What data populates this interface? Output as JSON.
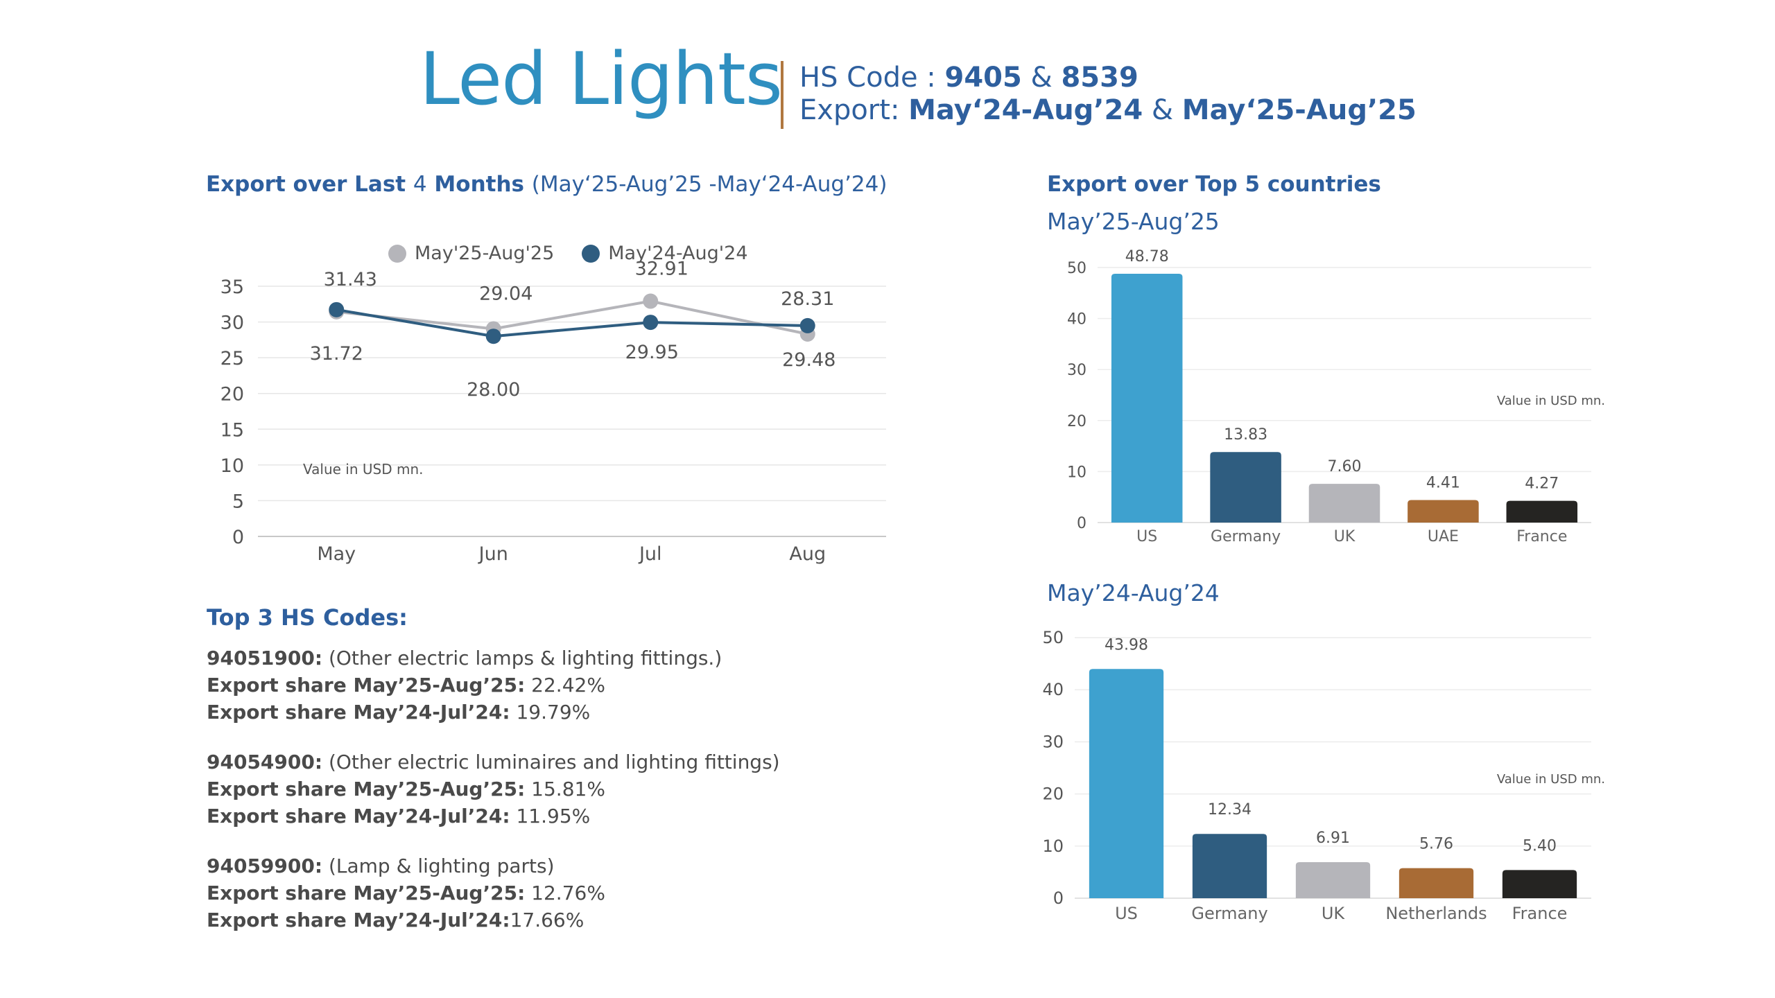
{
  "header": {
    "title": "Led Lights",
    "hs_label": "HS Code : ",
    "hs_code_1": "9405",
    "hs_amp": " & ",
    "hs_code_2": "8539",
    "export_label": "Export: ",
    "period_1": "May‘24-Aug’24",
    "period_amp": " & ",
    "period_2": "May‘25-Aug’25"
  },
  "line_section": {
    "title_bold_1": "Export over Last ",
    "title_num": "4",
    "title_bold_2": " Months ",
    "title_light": "(May‘25-Aug’25 -May‘24-Aug’24)"
  },
  "countries_section": {
    "title": "Export over Top 5 countries",
    "subtitle_1": "May’25-Aug’25",
    "subtitle_2": "May’24-Aug’24"
  },
  "hs_codes": {
    "heading": "Top 3 HS Codes:",
    "items": [
      {
        "code": "94051900:",
        "desc": " (Other electric lamps & lighting fittings.)",
        "share1_label": "Export share May’25-Aug’25:",
        "share1_value": " 22.42%",
        "share2_label": "Export share May’24-Jul’24:",
        "share2_value": " 19.79%"
      },
      {
        "code": "94054900:",
        "desc": " (Other electric luminaires and lighting fittings)",
        "share1_label": "Export share May’25-Aug’25:",
        "share1_value": " 15.81%",
        "share2_label": "Export share May’24-Jul’24:",
        "share2_value": " 11.95%"
      },
      {
        "code": "94059900:",
        "desc": " (Lamp & lighting parts)",
        "share1_label": "Export share May’25-Aug’25:",
        "share1_value": " 12.76%",
        "share2_label": "Export share May’24-Jul’24:",
        "share2_value": "17.66%"
      }
    ]
  },
  "colors": {
    "brand_blue": "#2f8fc0",
    "heading_blue": "#2e5f9e",
    "divider_brown": "#b07840",
    "series_2025": "#b5b5ba",
    "series_2024": "#2f5d80"
  },
  "chart_data": [
    {
      "type": "line",
      "categories": [
        "May",
        "Jun",
        "Jul",
        "Aug"
      ],
      "series": [
        {
          "name": "May'25-Aug'25",
          "values": [
            31.43,
            29.04,
            32.91,
            28.31
          ],
          "color": "#b5b5ba",
          "labels": [
            "31.43",
            "29.04",
            "32.91",
            "28.31"
          ]
        },
        {
          "name": "May'24-Aug'24",
          "values": [
            31.72,
            28.0,
            29.95,
            29.48
          ],
          "color": "#2f5d80",
          "labels": [
            "31.72",
            "28.00",
            "29.95",
            "29.48"
          ]
        }
      ],
      "yticks": [
        "0",
        "5",
        "10",
        "15",
        "20",
        "25",
        "30",
        "35"
      ],
      "ylim": [
        0,
        35
      ],
      "annotation": "Value in USD mn.",
      "legend": "top-center",
      "grid": true
    },
    {
      "type": "bar",
      "title": "May’25-Aug’25",
      "categories": [
        "US",
        "Germany",
        "UK",
        "UAE",
        "France"
      ],
      "values": [
        48.78,
        13.83,
        7.6,
        4.41,
        4.27
      ],
      "labels": [
        "48.78",
        "13.83",
        "7.60",
        "4.41",
        "4.27"
      ],
      "colors": [
        "#3ea1cf",
        "#2f5d80",
        "#b5b5ba",
        "#a86b35",
        "#252422"
      ],
      "yticks": [
        "0",
        "10",
        "20",
        "30",
        "40",
        "50"
      ],
      "ylim": [
        0,
        50
      ],
      "annotation": "Value in USD mn.",
      "grid": true
    },
    {
      "type": "bar",
      "title": "May’24-Aug’24",
      "categories": [
        "US",
        "Germany",
        "UK",
        "Netherlands",
        "France"
      ],
      "values": [
        43.98,
        12.34,
        6.91,
        5.76,
        5.4
      ],
      "labels": [
        "43.98",
        "12.34",
        "6.91",
        "5.76",
        "5.40"
      ],
      "colors": [
        "#3ea1cf",
        "#2f5d80",
        "#b5b5ba",
        "#a86b35",
        "#252422"
      ],
      "yticks": [
        "0",
        "10",
        "20",
        "30",
        "40",
        "50"
      ],
      "ylim": [
        0,
        50
      ],
      "annotation": "Value in USD mn.",
      "grid": true
    }
  ]
}
